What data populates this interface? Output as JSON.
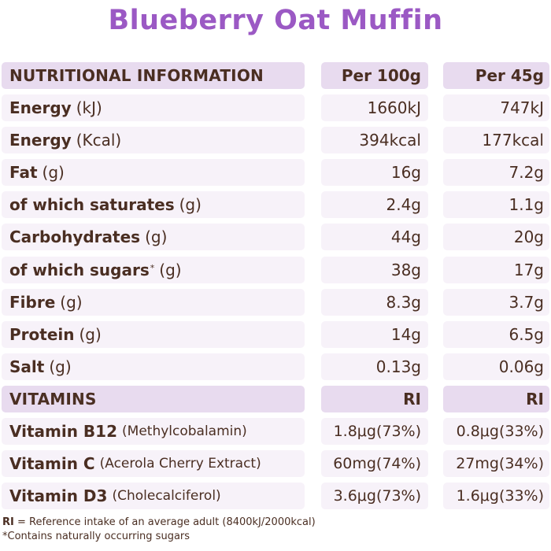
{
  "title": "Blueberry Oat Muffin",
  "header": {
    "label": "NUTRITIONAL INFORMATION",
    "col1": "Per 100g",
    "col2": "Per 45g"
  },
  "rows": [
    {
      "label": "Energy",
      "unit": "(kJ)",
      "v1": "1660kJ",
      "v2": "747kJ"
    },
    {
      "label": "Energy",
      "unit": "(Kcal)",
      "v1": "394kcal",
      "v2": "177kcal"
    },
    {
      "label": "Fat",
      "unit": "(g)",
      "v1": "16g",
      "v2": "7.2g"
    },
    {
      "label": "of which saturates",
      "unit": "(g)",
      "v1": "2.4g",
      "v2": "1.1g"
    },
    {
      "label": "Carbohydrates",
      "unit": "(g)",
      "v1": "44g",
      "v2": "20g"
    },
    {
      "label": "of which sugars",
      "sup": "*",
      "unit": "(g)",
      "v1": "38g",
      "v2": "17g"
    },
    {
      "label": "Fibre",
      "unit": "(g)",
      "v1": "8.3g",
      "v2": "3.7g"
    },
    {
      "label": "Protein",
      "unit": "(g)",
      "v1": "14g",
      "v2": "6.5g"
    },
    {
      "label": "Salt",
      "unit": "(g)",
      "v1": "0.13g",
      "v2": "0.06g"
    }
  ],
  "vitamins_header": {
    "label": "VITAMINS",
    "col1": "RI",
    "col2": "RI"
  },
  "vitamins": [
    {
      "label": "Vitamin B12",
      "unit": "(Methylcobalamin)",
      "v1": "1.8μg(73%)",
      "v2": "0.8μg(33%)"
    },
    {
      "label": "Vitamin C",
      "unit": "(Acerola Cherry Extract)",
      "v1": "60mg(74%)",
      "v2": "27mg(34%)"
    },
    {
      "label": "Vitamin D3",
      "unit": "(Cholecalciferol)",
      "v1": "3.6μg(73%)",
      "v2": "1.6μg(33%)"
    }
  ],
  "footer": {
    "ri_abbr": "RI",
    "ri_text": " = Reference intake of an average adult (8400kJ/2000kcal)",
    "sugars_note": "*Contains naturally occurring sugars"
  }
}
